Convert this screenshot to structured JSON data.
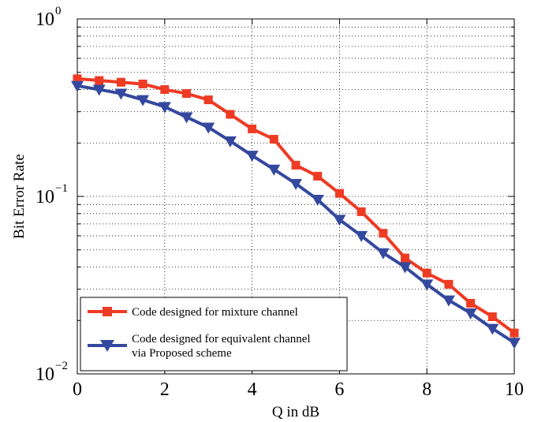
{
  "chart_data": {
    "type": "line",
    "xlabel": "Q in dB",
    "ylabel": "Bit Error Rate",
    "xlim": [
      0,
      10
    ],
    "ylim": [
      0.01,
      1
    ],
    "yscale": "log",
    "grid": true,
    "legend_position": "bottom-left",
    "x_ticks": [
      "0",
      "2",
      "4",
      "6",
      "8",
      "10"
    ],
    "y_ticks": [
      {
        "base": "10",
        "exp": "0"
      },
      {
        "base": "10",
        "exp": "−1"
      },
      {
        "base": "10",
        "exp": "−2"
      }
    ],
    "x": [
      0,
      0.5,
      1,
      1.5,
      2,
      2.5,
      3,
      3.5,
      4,
      4.5,
      5,
      5.5,
      6,
      6.5,
      7,
      7.5,
      8,
      8.5,
      9,
      9.5,
      10
    ],
    "series": [
      {
        "name": "Code designed for mixture channel",
        "color": "#ee3b24",
        "marker": "square",
        "values": [
          0.46,
          0.45,
          0.44,
          0.43,
          0.4,
          0.38,
          0.35,
          0.29,
          0.24,
          0.21,
          0.15,
          0.13,
          0.104,
          0.082,
          0.062,
          0.045,
          0.037,
          0.032,
          0.025,
          0.021,
          0.017
        ]
      },
      {
        "name": "Code designed for equivalent channel via Proposed scheme",
        "legend_lines": [
          "Code designed for equivalent channel",
          "via Proposed scheme"
        ],
        "color": "#34499e",
        "marker": "triangle-down",
        "values": [
          0.42,
          0.4,
          0.38,
          0.35,
          0.32,
          0.28,
          0.245,
          0.205,
          0.17,
          0.142,
          0.118,
          0.096,
          0.074,
          0.06,
          0.048,
          0.04,
          0.032,
          0.026,
          0.022,
          0.018,
          0.015
        ]
      }
    ]
  }
}
